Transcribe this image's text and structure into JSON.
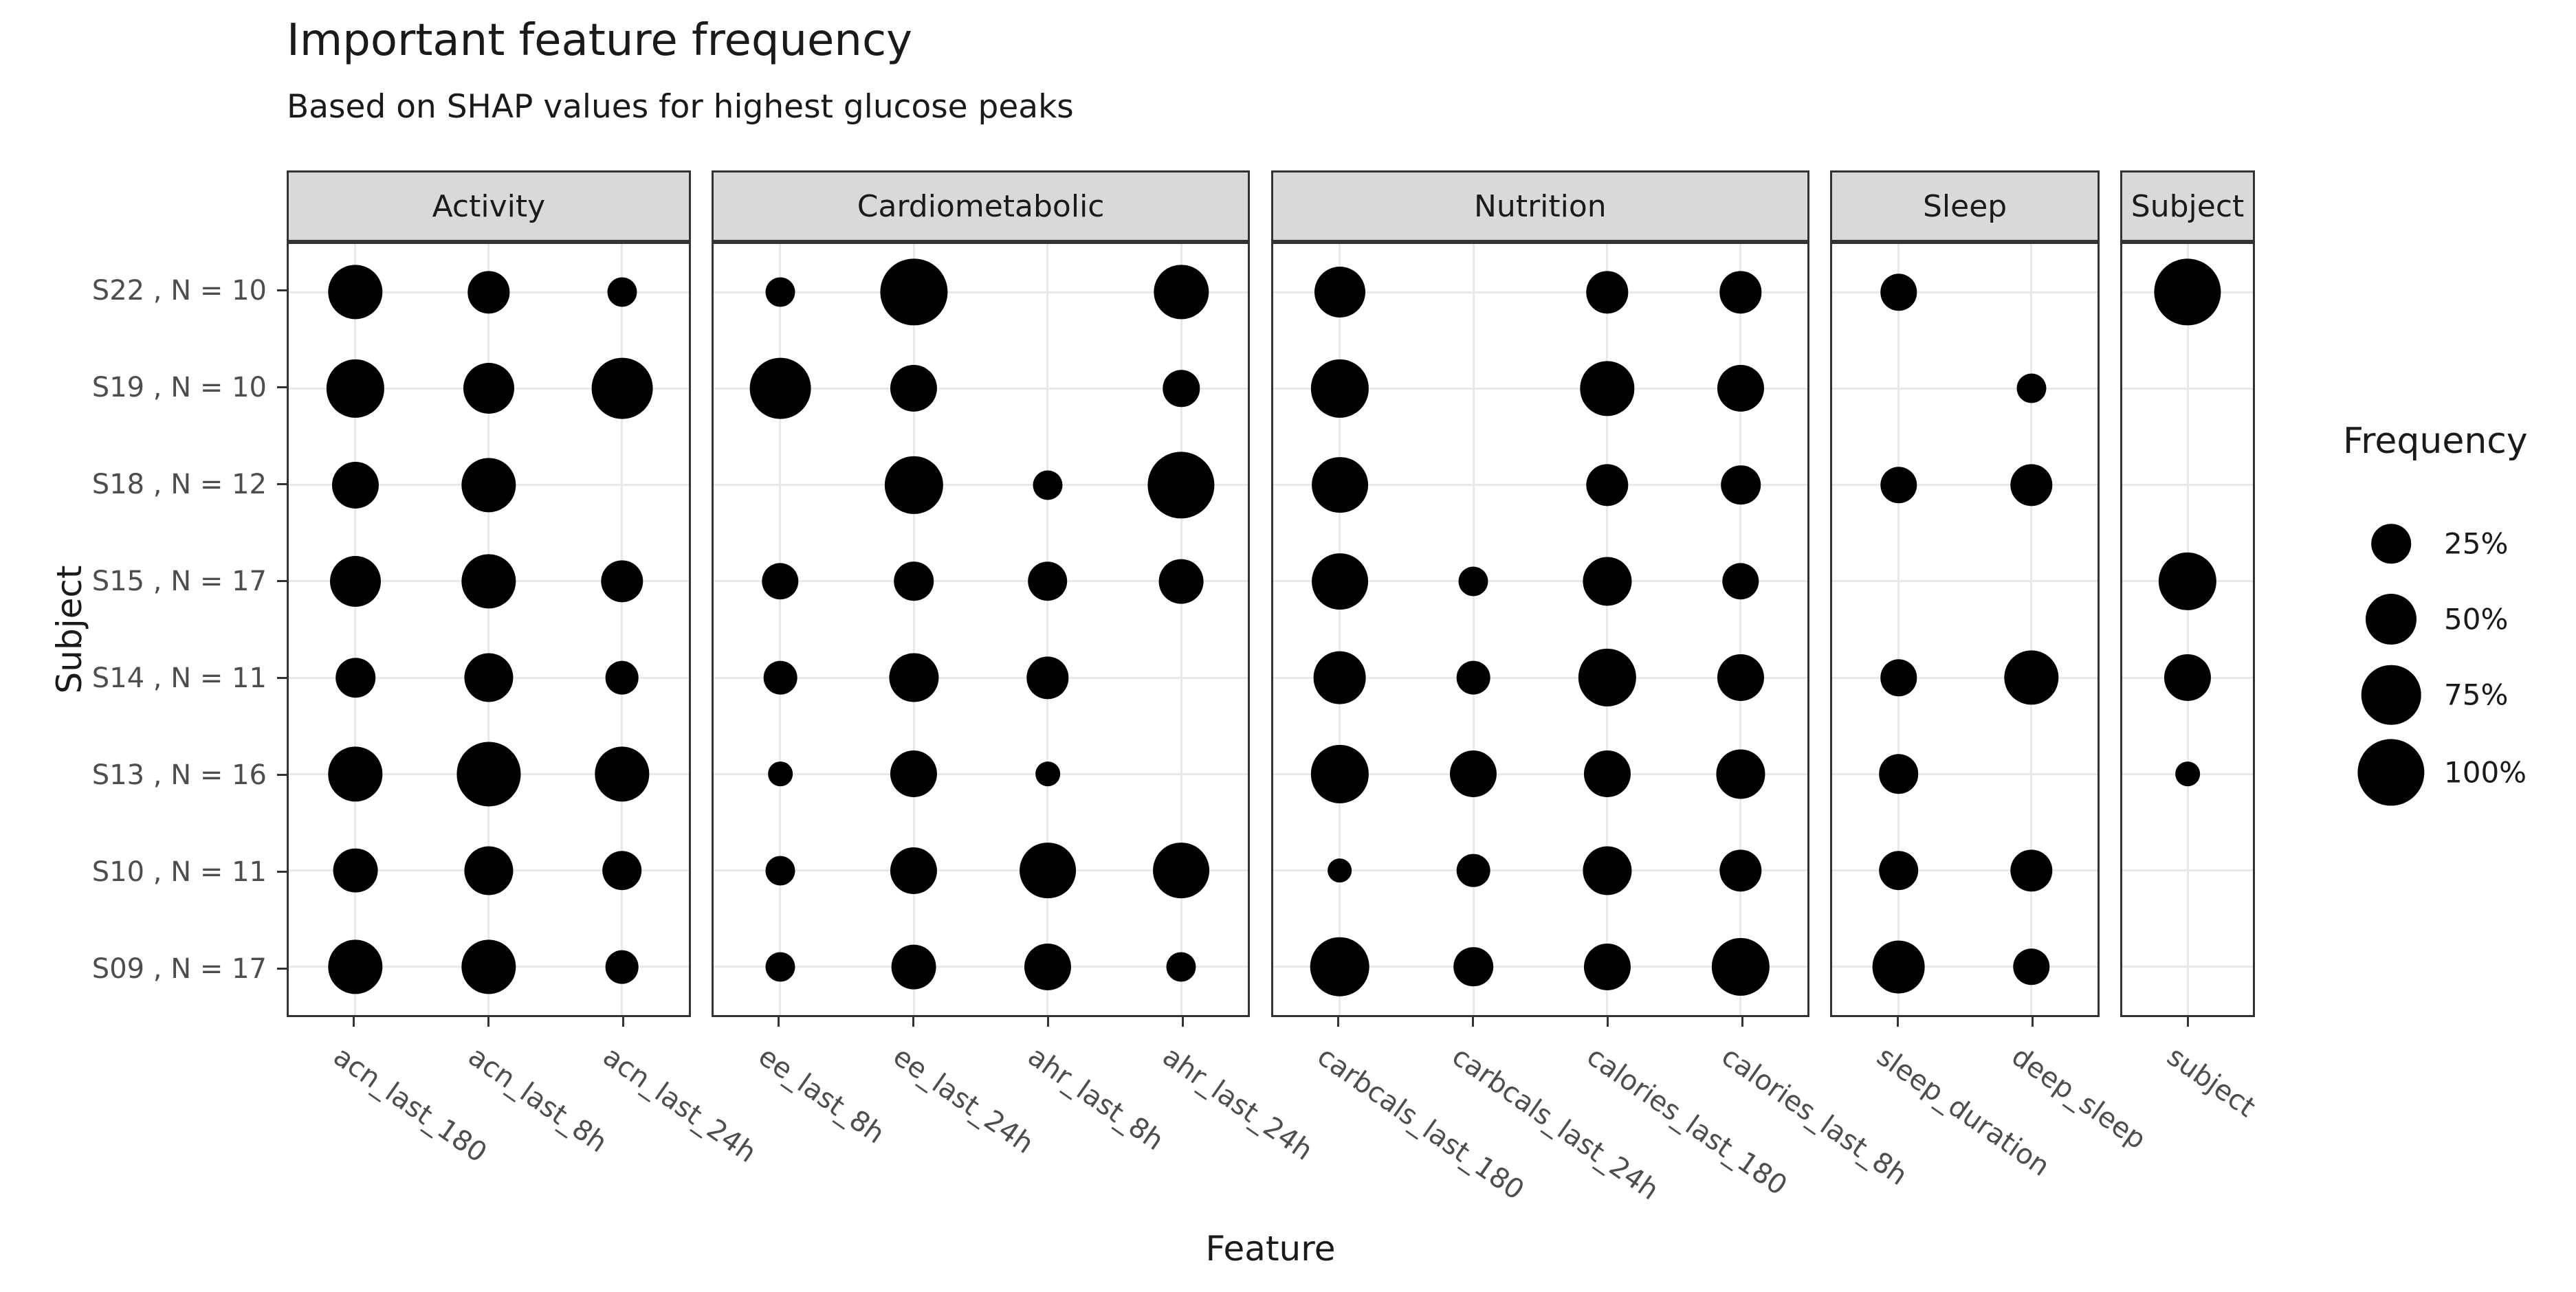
{
  "title": "Important feature frequency",
  "subtitle": "Based on SHAP values for highest glucose peaks",
  "chart_data": {
    "type": "scatter",
    "variant": "bubble-matrix",
    "title": "Important feature frequency",
    "subtitle": "Based on SHAP values for highest glucose peaks",
    "xlabel": "Feature",
    "ylabel": "Subject",
    "grid": "on",
    "dot_color": "#000000",
    "rows": [
      "S22 , N = 10",
      "S19 , N = 10",
      "S18 , N = 12",
      "S15 , N = 17",
      "S14 , N = 11",
      "S13 , N = 16",
      "S10 , N = 11",
      "S09 , N = 17"
    ],
    "value_unit": "frequency percent (estimated from bubble size; null = feature not present)",
    "facets": [
      {
        "name": "Activity",
        "columns": [
          "acn_last_180",
          "acn_last_8h",
          "acn_last_24h"
        ],
        "values": [
          [
            60,
            30,
            10
          ],
          [
            70,
            50,
            80
          ],
          [
            40,
            60,
            null
          ],
          [
            50,
            60,
            30
          ],
          [
            25,
            45,
            15
          ],
          [
            60,
            90,
            60
          ],
          [
            35,
            45,
            25
          ],
          [
            60,
            60,
            15
          ]
        ]
      },
      {
        "name": "Cardiometabolic",
        "columns": [
          "ee_last_8h",
          "ee_last_24h",
          "ahr_last_8h",
          "ahr_last_24h"
        ],
        "values": [
          [
            10,
            100,
            null,
            60
          ],
          [
            80,
            40,
            null,
            20
          ],
          [
            null,
            70,
            10,
            100
          ],
          [
            20,
            25,
            25,
            35
          ],
          [
            15,
            45,
            30,
            null
          ],
          [
            5,
            40,
            5,
            null
          ],
          [
            10,
            40,
            65,
            65
          ],
          [
            10,
            35,
            40,
            10
          ]
        ]
      },
      {
        "name": "Nutrition",
        "columns": [
          "carbcals_last_180",
          "carbcals_last_24h",
          "calories_last_180",
          "calories_last_8h"
        ],
        "values": [
          [
            50,
            null,
            30,
            30
          ],
          [
            70,
            null,
            60,
            40
          ],
          [
            65,
            null,
            30,
            25
          ],
          [
            65,
            10,
            45,
            20
          ],
          [
            55,
            15,
            70,
            40
          ],
          [
            70,
            40,
            40,
            45
          ],
          [
            5,
            15,
            45,
            30
          ],
          [
            75,
            25,
            40,
            70
          ]
        ]
      },
      {
        "name": "Sleep",
        "columns": [
          "sleep_duration",
          "deep_sleep"
        ],
        "values": [
          [
            20,
            null
          ],
          [
            null,
            10
          ],
          [
            20,
            30
          ],
          [
            null,
            null
          ],
          [
            20,
            60
          ],
          [
            25,
            null
          ],
          [
            25,
            30
          ],
          [
            55,
            20
          ]
        ]
      },
      {
        "name": "Subject",
        "columns": [
          "subject"
        ],
        "values": [
          [
            100
          ],
          [
            null
          ],
          [
            null
          ],
          [
            70
          ],
          [
            40
          ],
          [
            5
          ],
          [
            null
          ],
          [
            null
          ]
        ]
      }
    ],
    "legend": {
      "title": "Frequency",
      "position": "right",
      "entries": [
        25,
        50,
        75,
        100
      ],
      "labels": [
        "25%",
        "50%",
        "75%",
        "100%"
      ]
    }
  },
  "colors": {
    "dot": "#000000",
    "strip_background": "#d9d9d9",
    "panel_border": "#333333",
    "gridline": "#e9e9e9",
    "axis_text": "#4d4d4d",
    "title_text": "#1a1a1a"
  }
}
